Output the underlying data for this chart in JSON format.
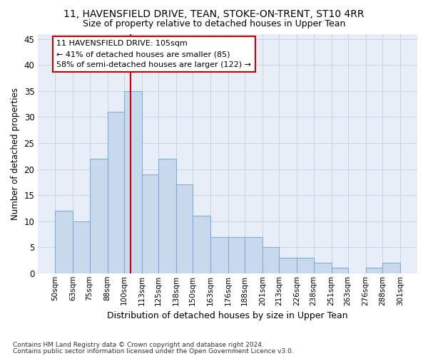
{
  "title1": "11, HAVENSFIELD DRIVE, TEAN, STOKE-ON-TRENT, ST10 4RR",
  "title2": "Size of property relative to detached houses in Upper Tean",
  "xlabel": "Distribution of detached houses by size in Upper Tean",
  "ylabel": "Number of detached properties",
  "footnote1": "Contains HM Land Registry data © Crown copyright and database right 2024.",
  "footnote2": "Contains public sector information licensed under the Open Government Licence v3.0.",
  "annotation_line1": "11 HAVENSFIELD DRIVE: 105sqm",
  "annotation_line2": "← 41% of detached houses are smaller (85)",
  "annotation_line3": "58% of semi-detached houses are larger (122) →",
  "property_size": 105,
  "bar_color": "#c9d9ed",
  "bar_edge_color": "#7bafd4",
  "vline_color": "#cc0000",
  "grid_color": "#c8d4e0",
  "background_color": "#e8eef8",
  "bins": [
    50,
    63,
    75,
    88,
    100,
    113,
    125,
    138,
    150,
    163,
    176,
    188,
    201,
    213,
    226,
    238,
    251,
    263,
    276,
    288,
    301
  ],
  "counts": [
    12,
    10,
    22,
    31,
    35,
    19,
    22,
    17,
    11,
    7,
    7,
    7,
    5,
    3,
    3,
    2,
    1,
    0,
    1,
    2
  ],
  "ylim": [
    0,
    46
  ],
  "yticks": [
    0,
    5,
    10,
    15,
    20,
    25,
    30,
    35,
    40,
    45
  ]
}
